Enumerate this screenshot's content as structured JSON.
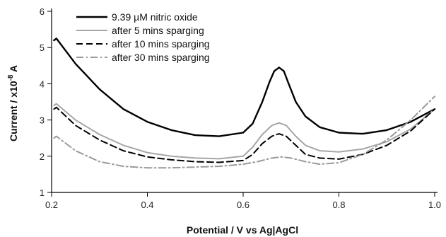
{
  "chart_data": {
    "type": "line",
    "title": "",
    "xlabel": "Potential / V vs Ag|AgCl",
    "ylabel_prefix": "Current / x10",
    "ylabel_exp": "-8",
    "ylabel_suffix": " A",
    "xlim": [
      0.2,
      1.0
    ],
    "ylim": [
      1,
      6
    ],
    "xticks": [
      "0.2",
      "0.4",
      "0.6",
      "0.8",
      "1.0"
    ],
    "xtick_values": [
      0.2,
      0.4,
      0.6,
      0.8,
      1.0
    ],
    "yticks": [
      "1",
      "2",
      "3",
      "4",
      "5",
      "6"
    ],
    "ytick_values": [
      1,
      2,
      3,
      4,
      5,
      6
    ],
    "grid": false,
    "legend_position": "top-left",
    "series": [
      {
        "name": "9.39 µM nitric oxide",
        "color": "#000000",
        "dash": "solid",
        "x": [
          0.205,
          0.21,
          0.25,
          0.3,
          0.35,
          0.4,
          0.45,
          0.5,
          0.55,
          0.6,
          0.62,
          0.64,
          0.655,
          0.665,
          0.675,
          0.685,
          0.695,
          0.71,
          0.73,
          0.76,
          0.8,
          0.85,
          0.9,
          0.95,
          1.0
        ],
        "y": [
          5.2,
          5.25,
          4.55,
          3.85,
          3.3,
          2.95,
          2.72,
          2.58,
          2.55,
          2.65,
          2.9,
          3.5,
          4.05,
          4.35,
          4.45,
          4.35,
          4.0,
          3.5,
          3.1,
          2.8,
          2.65,
          2.62,
          2.72,
          2.95,
          3.3
        ]
      },
      {
        "name": "after 5 mins sparging",
        "color": "#a6a6a6",
        "dash": "solid",
        "x": [
          0.205,
          0.21,
          0.25,
          0.3,
          0.35,
          0.4,
          0.45,
          0.5,
          0.55,
          0.6,
          0.62,
          0.64,
          0.66,
          0.675,
          0.69,
          0.71,
          0.73,
          0.76,
          0.8,
          0.85,
          0.9,
          0.95,
          1.0
        ],
        "y": [
          3.4,
          3.45,
          3.0,
          2.6,
          2.3,
          2.1,
          2.0,
          1.95,
          1.93,
          2.0,
          2.25,
          2.6,
          2.85,
          2.92,
          2.85,
          2.55,
          2.3,
          2.15,
          2.12,
          2.2,
          2.4,
          2.75,
          3.3
        ]
      },
      {
        "name": "after 10 mins sparging",
        "color": "#000000",
        "dash": "dashed",
        "x": [
          0.205,
          0.21,
          0.25,
          0.3,
          0.35,
          0.4,
          0.45,
          0.5,
          0.55,
          0.6,
          0.62,
          0.64,
          0.66,
          0.675,
          0.69,
          0.71,
          0.73,
          0.76,
          0.8,
          0.85,
          0.9,
          0.95,
          1.0
        ],
        "y": [
          3.3,
          3.35,
          2.85,
          2.45,
          2.15,
          1.98,
          1.9,
          1.85,
          1.83,
          1.88,
          2.05,
          2.35,
          2.55,
          2.62,
          2.55,
          2.3,
          2.05,
          1.95,
          1.92,
          2.05,
          2.3,
          2.7,
          3.3
        ]
      },
      {
        "name": "after 30 mins sparging",
        "color": "#9a9a9a",
        "dash": "dashdot",
        "x": [
          0.205,
          0.21,
          0.25,
          0.3,
          0.35,
          0.4,
          0.45,
          0.5,
          0.55,
          0.6,
          0.63,
          0.66,
          0.68,
          0.7,
          0.73,
          0.76,
          0.8,
          0.85,
          0.9,
          0.95,
          1.0
        ],
        "y": [
          2.5,
          2.55,
          2.15,
          1.85,
          1.72,
          1.68,
          1.68,
          1.7,
          1.72,
          1.78,
          1.85,
          1.95,
          1.98,
          1.95,
          1.85,
          1.78,
          1.82,
          2.05,
          2.45,
          3.0,
          3.65
        ]
      }
    ]
  }
}
